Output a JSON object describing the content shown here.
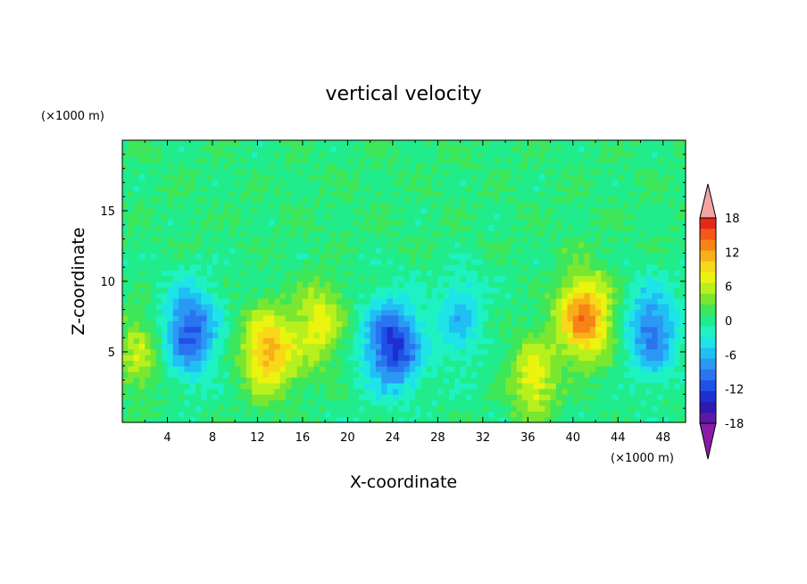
{
  "chart_data": {
    "type": "heatmap",
    "title": "vertical velocity",
    "xlabel": "X-coordinate",
    "ylabel": "Z-coordinate",
    "x_units": "(×1000 m)",
    "y_units": "(×1000 m)",
    "xlim": [
      0,
      50
    ],
    "ylim": [
      0,
      20
    ],
    "x_ticks": [
      "4",
      "8",
      "12",
      "16",
      "20",
      "24",
      "28",
      "32",
      "36",
      "40",
      "44",
      "48"
    ],
    "y_ticks": [
      "5",
      "10",
      "15"
    ],
    "colorbar": {
      "levels_min": -20,
      "levels_max": 20,
      "level_step": 2,
      "extend": "both",
      "tick_labels": [
        "18",
        "12",
        "6",
        "0",
        "-6",
        "-12",
        "-18"
      ],
      "colors": [
        "#8a1ca8",
        "#5a1aa6",
        "#2a1ab0",
        "#1e2fd2",
        "#2050e6",
        "#2a74f0",
        "#2b98f4",
        "#20bff4",
        "#1ee3e8",
        "#1ef2c2",
        "#20ec8c",
        "#3ee65a",
        "#7ae630",
        "#b8f01e",
        "#eaf40e",
        "#f8d818",
        "#f8b018",
        "#f88418",
        "#f45818",
        "#e62818",
        "#f4a4a4"
      ]
    },
    "features": [
      {
        "x": 6,
        "z": 6.5,
        "value": -12
      },
      {
        "x": 13,
        "z": 5,
        "value": 12
      },
      {
        "x": 17.5,
        "z": 7,
        "value": 8
      },
      {
        "x": 24,
        "z": 5.5,
        "value": -14
      },
      {
        "x": 30,
        "z": 7.5,
        "value": -6
      },
      {
        "x": 36.5,
        "z": 3,
        "value": 8
      },
      {
        "x": 41,
        "z": 7.5,
        "value": 14
      },
      {
        "x": 47,
        "z": 6.5,
        "value": -10
      },
      {
        "x": 1.5,
        "z": 5,
        "value": 6
      }
    ]
  }
}
